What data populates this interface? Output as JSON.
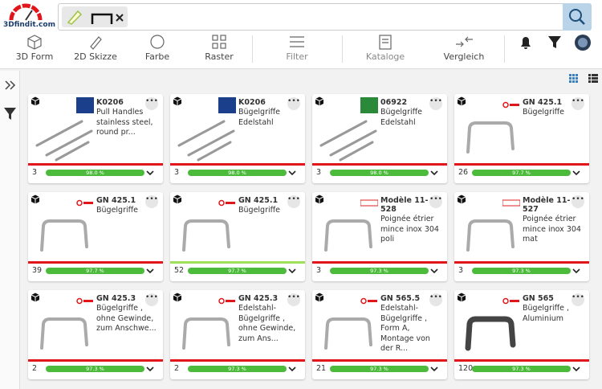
{
  "header": {
    "logo": "3Dfindit.com"
  },
  "toolbar": [
    "3D Form",
    "2D Skizze",
    "Farbe",
    "Raster",
    "Filter",
    "Kataloge",
    "Vergleich"
  ],
  "cards": [
    {
      "id": "K0206",
      "description": "Pull Handles stainless steel, round pr...",
      "count": "3",
      "match": "98.0 %"
    },
    {
      "id": "K0206",
      "description": "Bügelgriffe Edelstahl",
      "count": "3",
      "match": "98.0 %"
    },
    {
      "id": "06922",
      "description": "Bügelgriffe Edelstahl",
      "count": "3",
      "match": "98.0 %"
    },
    {
      "id": "GN 425.1",
      "description": "Bügelgriffe",
      "count": "26",
      "match": "97.7 %"
    },
    {
      "id": "GN 425.1",
      "description": "Bügelgriffe",
      "count": "39",
      "match": "97.7 %"
    },
    {
      "id": "GN 425.1",
      "description": "Bügelgriffe",
      "count": "52",
      "match": "97.7 %"
    },
    {
      "id": "Modèle 11-528",
      "description": "Poignée étrier mince inox 304 poli",
      "count": "3",
      "match": "97.3 %"
    },
    {
      "id": "Modèle 11-527",
      "description": "Poignée étrier mince inox 304 mat",
      "count": "3",
      "match": "97.3 %"
    },
    {
      "id": "GN 425.3",
      "description": "Bügelgriffe , ohne Gewinde, zum Anschwe...",
      "count": "2",
      "match": "97.3 %"
    },
    {
      "id": "GN 425.3",
      "description": "Edelstahl-Bügelgriffe , ohne Gewinde, zum Ans...",
      "count": "2",
      "match": "97.3 %"
    },
    {
      "id": "GN 565.5",
      "description": "Edelstahl-Bügelgriffe , Form A, Montage von der R...",
      "count": "21",
      "match": "97.3 %"
    },
    {
      "id": "GN 565",
      "description": "Bügelgriffe , Aluminium",
      "count": "120",
      "match": "97.3 %"
    }
  ]
}
